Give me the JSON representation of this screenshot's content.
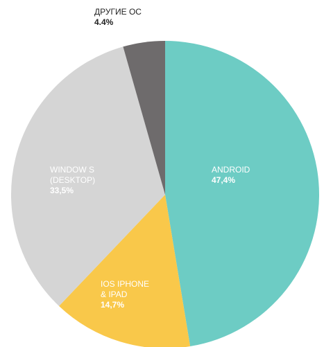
{
  "chart_data": {
    "type": "pie",
    "categories": [
      "ANDROID",
      "IOS IPHONE\n& IPAD",
      "WINDOW S\n(DESKTOP)",
      "ДРУГИЕ ОС"
    ],
    "values": [
      47.4,
      14.7,
      33.5,
      4.4
    ],
    "value_labels": [
      "47,4%",
      "14,7%",
      "33,5%",
      "4.4%"
    ],
    "colors": [
      "#6dccc4",
      "#f9c84a",
      "#d5d5d5",
      "#6e6b6c"
    ]
  }
}
